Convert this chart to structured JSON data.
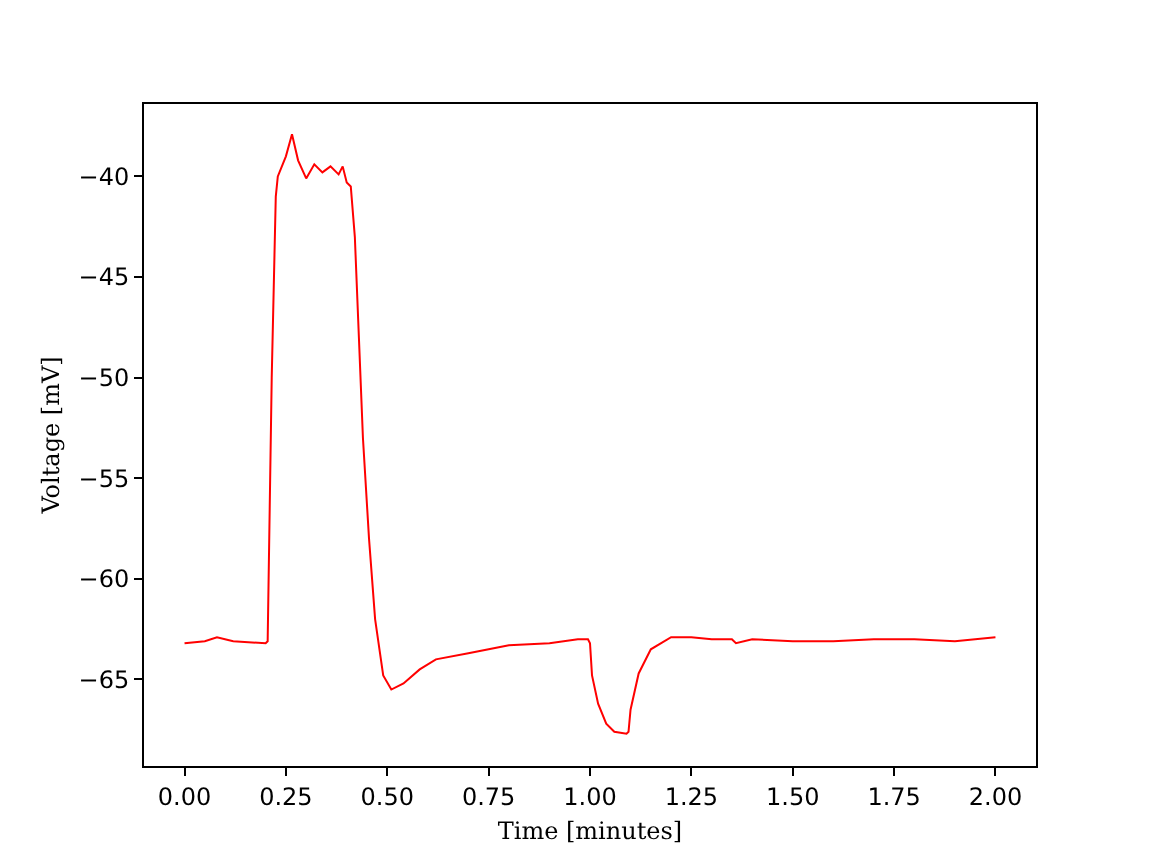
{
  "chart_data": {
    "type": "line",
    "xlabel": "Time [minutes]",
    "ylabel": "Voltage [mV]",
    "x": [
      0,
      0.05,
      0.08,
      0.12,
      0.2,
      0.205,
      0.215,
      0.225,
      0.23,
      0.25,
      0.265,
      0.28,
      0.3,
      0.32,
      0.34,
      0.36,
      0.38,
      0.39,
      0.4,
      0.41,
      0.42,
      0.43,
      0.44,
      0.455,
      0.47,
      0.49,
      0.51,
      0.54,
      0.58,
      0.62,
      0.7,
      0.75,
      0.8,
      0.9,
      0.97,
      0.995,
      1.0,
      1.005,
      1.02,
      1.04,
      1.06,
      1.09,
      1.095,
      1.1,
      1.12,
      1.15,
      1.2,
      1.25,
      1.3,
      1.35,
      1.36,
      1.4,
      1.5,
      1.6,
      1.7,
      1.8,
      1.9,
      1.95,
      2.0
    ],
    "series": [
      {
        "color": "#ff0000",
        "values": [
          -63.2,
          -63.1,
          -62.9,
          -63.1,
          -63.2,
          -63.1,
          -50,
          -41,
          -40,
          -39,
          -37.9,
          -39.2,
          -40.1,
          -39.4,
          -39.8,
          -39.5,
          -39.9,
          -39.5,
          -40.3,
          -40.5,
          -43,
          -48,
          -53,
          -58,
          -62,
          -64.8,
          -65.5,
          -65.2,
          -64.5,
          -64.0,
          -63.7,
          -63.5,
          -63.3,
          -63.2,
          -63.0,
          -63.0,
          -63.2,
          -64.8,
          -66.2,
          -67.2,
          -67.6,
          -67.7,
          -67.6,
          -66.5,
          -64.7,
          -63.5,
          -62.9,
          -62.9,
          -63.0,
          -63.0,
          -63.2,
          -63.0,
          -63.1,
          -63.1,
          -63.0,
          -63.0,
          -63.1,
          -63.0,
          -62.9
        ]
      }
    ],
    "xlim": [
      -0.1,
      2.1
    ],
    "ylim": [
      -69.3,
      -36.4
    ],
    "xticks": [
      {
        "value": 0,
        "label": "0.00"
      },
      {
        "value": 0.25,
        "label": "0.25"
      },
      {
        "value": 0.5,
        "label": "0.50"
      },
      {
        "value": 0.75,
        "label": "0.75"
      },
      {
        "value": 1,
        "label": "1.00"
      },
      {
        "value": 1.25,
        "label": "1.25"
      },
      {
        "value": 1.5,
        "label": "1.50"
      },
      {
        "value": 1.75,
        "label": "1.75"
      },
      {
        "value": 2,
        "label": "2.00"
      }
    ],
    "yticks": [
      {
        "value": -65,
        "label": "−65"
      },
      {
        "value": -60,
        "label": "−60"
      },
      {
        "value": -55,
        "label": "−55"
      },
      {
        "value": -50,
        "label": "−50"
      },
      {
        "value": -45,
        "label": "−45"
      },
      {
        "value": -40,
        "label": "−40"
      }
    ],
    "marker": "none",
    "line_style": "solid"
  }
}
